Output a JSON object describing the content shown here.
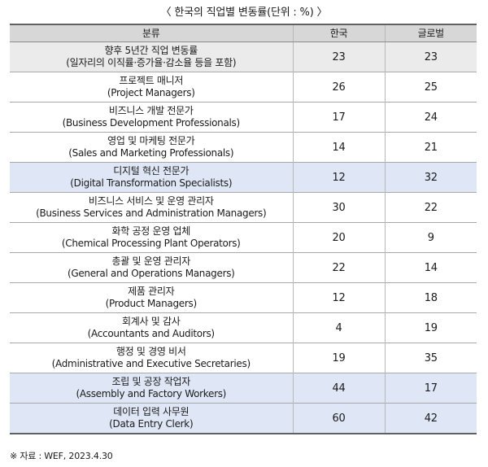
{
  "caption": "〈 한국의 직업별 변동률(단위 : %) 〉",
  "headers": {
    "category": "분류",
    "korea": "한국",
    "global": "글로벌"
  },
  "rows": [
    {
      "ko": "향후 5년간 직업 변동률",
      "en": "(일자리의 이직률·증가율·감소율 등을 포함)",
      "korea": "23",
      "global": "23",
      "shade": "gray"
    },
    {
      "ko": "프로젝트 매니저",
      "en": "(Project Managers)",
      "korea": "26",
      "global": "25",
      "shade": "none"
    },
    {
      "ko": "비즈니스 개발 전문가",
      "en": "(Business Development Professionals)",
      "korea": "17",
      "global": "24",
      "shade": "none"
    },
    {
      "ko": "영업 및 마케팅 전문가",
      "en": "(Sales and Marketing Professionals)",
      "korea": "14",
      "global": "21",
      "shade": "none"
    },
    {
      "ko": "디지털 혁신 전문가",
      "en": "(Digital Transformation Specialists)",
      "korea": "12",
      "global": "32",
      "shade": "blue"
    },
    {
      "ko": "비즈니스 서비스 및 운영 관리자",
      "en": "(Business Services and Administration Managers)",
      "korea": "30",
      "global": "22",
      "shade": "none"
    },
    {
      "ko": "화학 공정 운영 업체",
      "en": "(Chemical Processing Plant Operators)",
      "korea": "20",
      "global": "9",
      "shade": "none"
    },
    {
      "ko": "총괄 및 운영 관리자",
      "en": "(General and Operations Managers)",
      "korea": "22",
      "global": "14",
      "shade": "none"
    },
    {
      "ko": "제품 관리자",
      "en": "(Product Managers)",
      "korea": "12",
      "global": "18",
      "shade": "none"
    },
    {
      "ko": "회계사 및 감사",
      "en": "(Accountants and Auditors)",
      "korea": "4",
      "global": "19",
      "shade": "none"
    },
    {
      "ko": "행정 및 경영 비서",
      "en": "(Administrative and Executive Secretaries)",
      "korea": "19",
      "global": "35",
      "shade": "none"
    },
    {
      "ko": "조립 및 공장 작업자",
      "en": "(Assembly and Factory Workers)",
      "korea": "44",
      "global": "17",
      "shade": "blue"
    },
    {
      "ko": "데이터 입력 사무원",
      "en": "(Data Entry Clerk)",
      "korea": "60",
      "global": "42",
      "shade": "blue"
    }
  ],
  "source_note": "※ 자료 : WEF, 2023.4.30",
  "colors": {
    "header_bg": "#d7d7d7",
    "gray_row_bg": "#ebebeb",
    "blue_row_bg": "#dfe6f5"
  }
}
